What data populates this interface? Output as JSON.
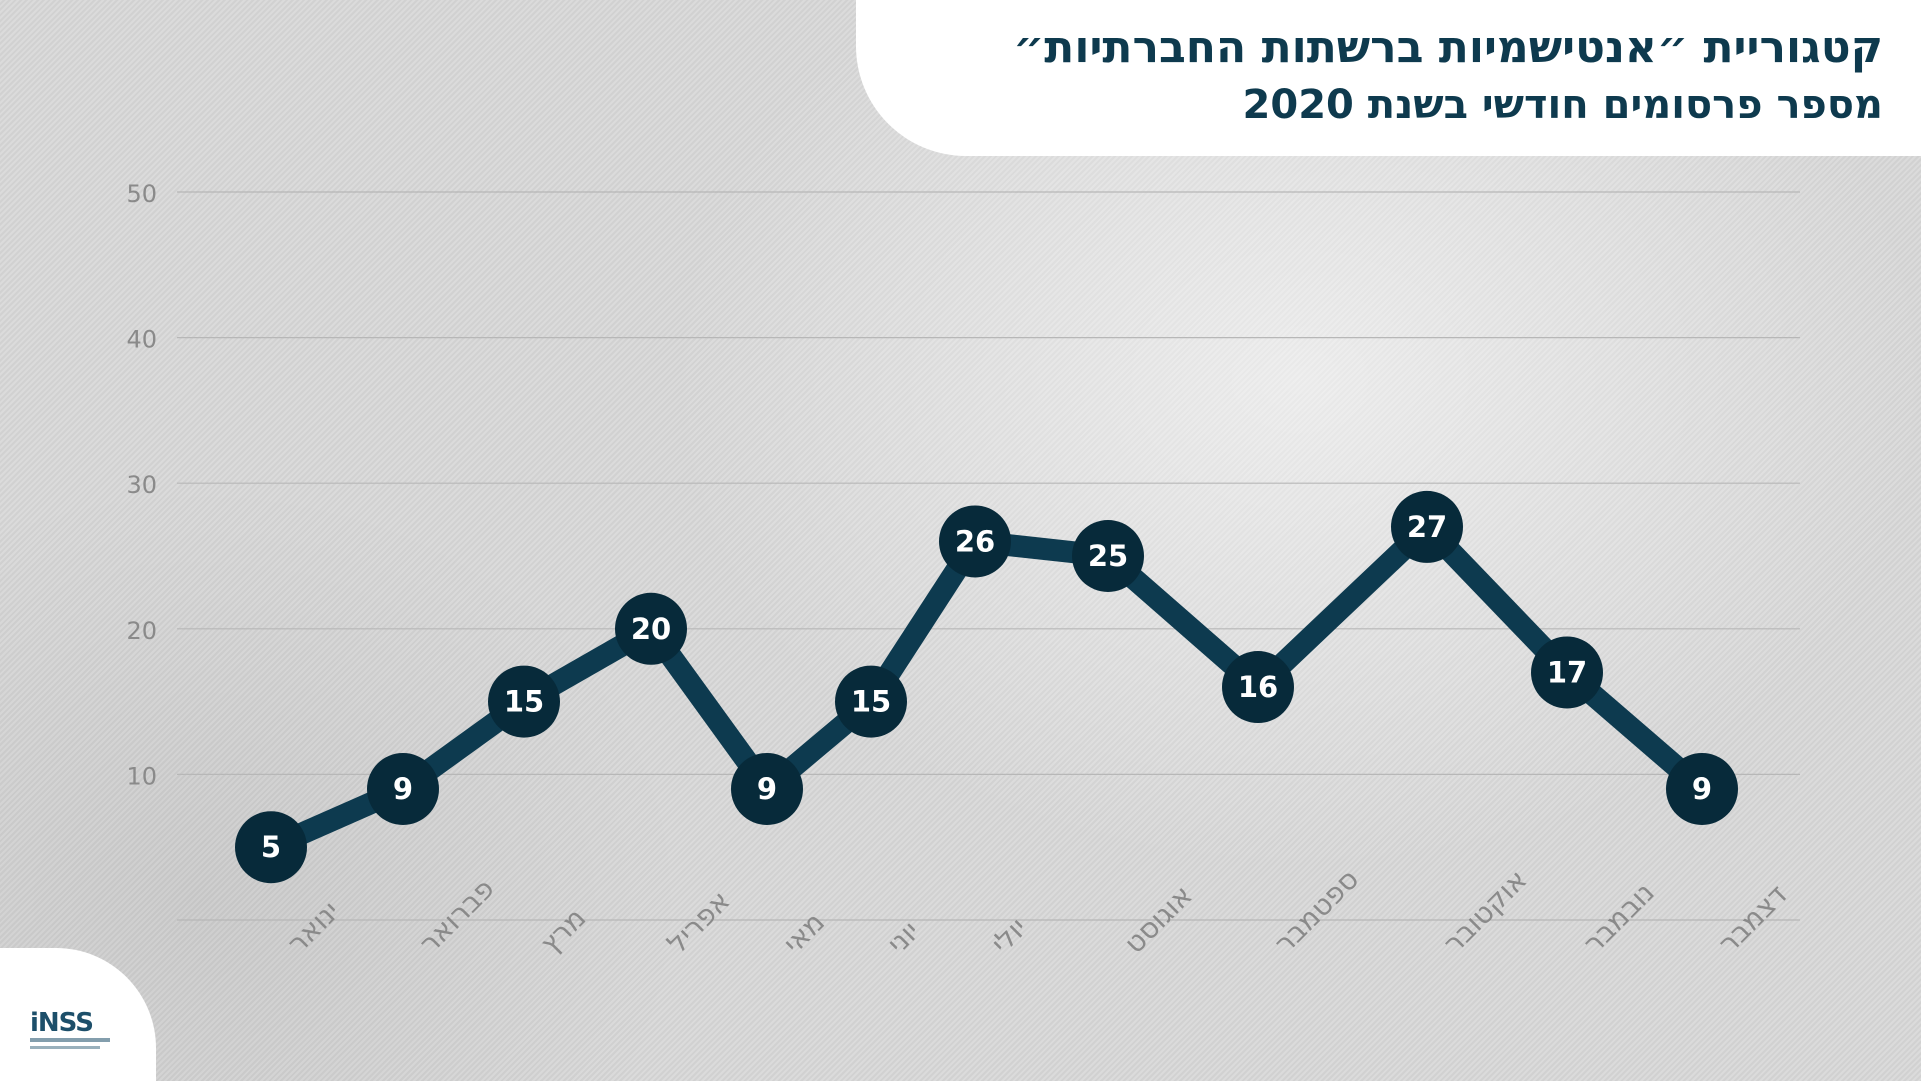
{
  "header": {
    "title": "קטגוריית ״אנטישמיות ברשתות החברתיות״",
    "subtitle": "מספר פרסומים חודשי בשנת 2020"
  },
  "logo": {
    "text": "iNSS"
  },
  "colors": {
    "line": "#0d3a4f",
    "marker": "#072a3a",
    "marker_text": "#ffffff",
    "gridline": "#b7b7b7",
    "tick_text": "#8a8a8a"
  },
  "chart_data": {
    "type": "line",
    "title": "קטגוריית ״אנטישמיות ברשתות החברתיות״",
    "subtitle": "מספר פרסומים חודשי בשנת 2020",
    "categories": [
      "ינואר",
      "פברואר",
      "מרץ",
      "אפריל",
      "מאי",
      "יוני",
      "יולי",
      "אוגוסט",
      "ספטמבר",
      "אוקטובר",
      "נובמבר",
      "דצמבר"
    ],
    "series": [
      {
        "values": [
          5,
          9,
          15,
          20,
          9,
          15,
          26,
          25,
          16,
          27,
          17,
          9
        ]
      }
    ],
    "ylim": [
      0,
      50
    ],
    "yticks": [
      10,
      20,
      30,
      40,
      50
    ],
    "grid": true,
    "data_labels": true
  }
}
